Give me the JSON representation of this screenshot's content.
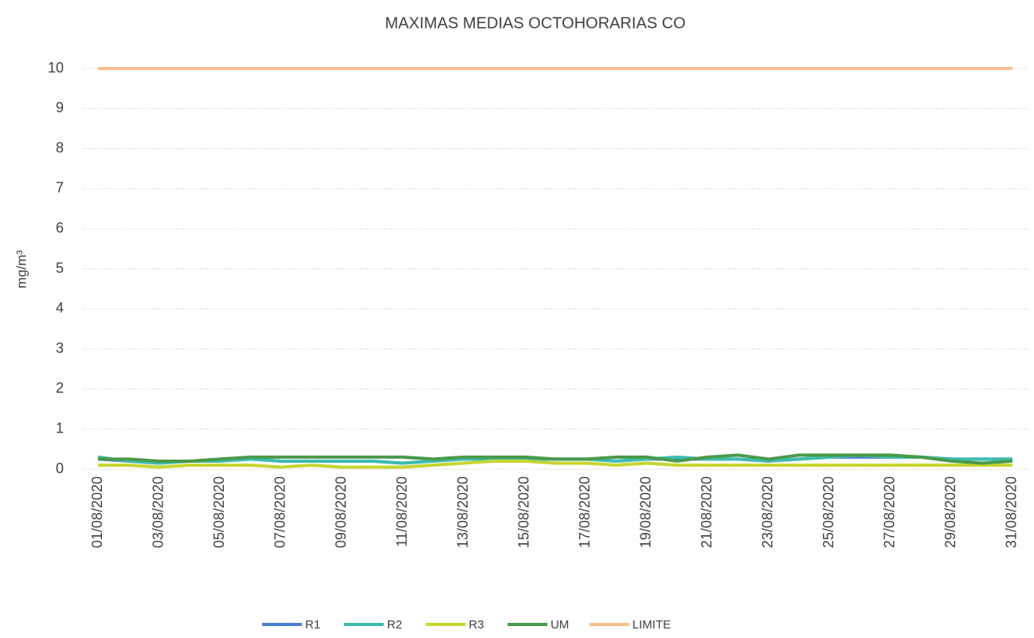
{
  "chart_data": {
    "type": "line",
    "title": "MAXIMAS  MEDIAS OCTOHORARIAS CO",
    "y_label": "mg/m³",
    "categories": [
      "01/08/2020",
      null,
      "03/08/2020",
      null,
      "05/08/2020",
      null,
      "07/08/2020",
      null,
      "09/08/2020",
      null,
      "11/08/2020",
      null,
      "13/08/2020",
      null,
      "15/08/2020",
      null,
      "17/08/2020",
      null,
      "19/08/2020",
      null,
      "21/08/2020",
      null,
      "23/08/2020",
      null,
      "25/08/2020",
      null,
      "27/08/2020",
      null,
      "29/08/2020",
      null,
      "31/08/2020"
    ],
    "series": [
      {
        "name": "R1",
        "color": "#4a7fd0",
        "values": [
          0.25,
          0.2,
          0.15,
          0.2,
          0.2,
          0.25,
          0.2,
          0.2,
          0.2,
          0.2,
          0.15,
          0.2,
          0.25,
          0.25,
          0.25,
          0.25,
          0.25,
          0.2,
          0.25,
          0.25,
          0.25,
          0.25,
          0.2,
          0.25,
          0.3,
          0.3,
          0.3,
          0.3,
          0.25,
          0.25,
          0.25
        ]
      },
      {
        "name": "R2",
        "color": "#3dbdb0",
        "values": [
          0.3,
          0.2,
          0.15,
          0.2,
          0.2,
          0.25,
          0.2,
          0.2,
          0.2,
          0.2,
          0.15,
          0.2,
          0.25,
          0.25,
          0.25,
          0.25,
          0.25,
          0.2,
          0.25,
          0.3,
          0.25,
          0.25,
          0.2,
          0.25,
          0.3,
          0.35,
          0.3,
          0.3,
          0.25,
          0.25,
          0.25
        ]
      },
      {
        "name": "R3",
        "color": "#c6d630",
        "values": [
          0.1,
          0.1,
          0.05,
          0.1,
          0.1,
          0.1,
          0.05,
          0.1,
          0.05,
          0.05,
          0.05,
          0.1,
          0.15,
          0.2,
          0.2,
          0.15,
          0.15,
          0.1,
          0.15,
          0.1,
          0.1,
          0.1,
          0.1,
          0.1,
          0.1,
          0.1,
          0.1,
          0.1,
          0.1,
          0.1,
          0.1
        ]
      },
      {
        "name": "UM",
        "color": "#4a9a4a",
        "values": [
          0.25,
          0.25,
          0.2,
          0.2,
          0.25,
          0.3,
          0.3,
          0.3,
          0.3,
          0.3,
          0.3,
          0.25,
          0.3,
          0.3,
          0.3,
          0.25,
          0.25,
          0.3,
          0.3,
          0.2,
          0.3,
          0.35,
          0.25,
          0.35,
          0.35,
          0.35,
          0.35,
          0.3,
          0.2,
          0.15,
          0.2
        ]
      },
      {
        "name": "LIMITE",
        "color": "#f5c08e",
        "values": [
          10,
          10,
          10,
          10,
          10,
          10,
          10,
          10,
          10,
          10,
          10,
          10,
          10,
          10,
          10,
          10,
          10,
          10,
          10,
          10,
          10,
          10,
          10,
          10,
          10,
          10,
          10,
          10,
          10,
          10,
          10
        ]
      }
    ],
    "ylim": [
      0,
      10
    ],
    "yticks": [
      0,
      1,
      2,
      3,
      4,
      5,
      6,
      7,
      8,
      9,
      10
    ],
    "grid": true
  }
}
